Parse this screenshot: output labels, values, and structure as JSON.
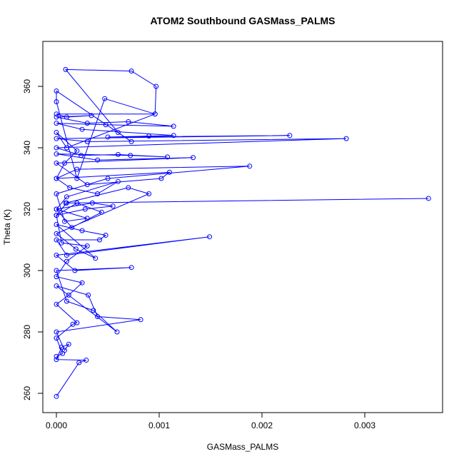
{
  "chart_data": {
    "type": "scatter",
    "mode": "lines+markers",
    "title": "ATOM2 Southbound GASMass_PALMS",
    "x_label": "GASMass_PALMS",
    "y_label": "Theta (K)",
    "color": "#0000ff",
    "xlim": [
      -0.000132,
      0.003757
    ],
    "ylim": [
      253.72,
      374.65
    ],
    "xticks": [
      {
        "value": 0,
        "label": "0.000"
      },
      {
        "value": 0.001,
        "label": "0.001"
      },
      {
        "value": 0.002,
        "label": "0.002"
      },
      {
        "value": 0.003,
        "label": "0.003"
      }
    ],
    "yticks": [
      260,
      280,
      300,
      320,
      340,
      360
    ],
    "x": [
      0,
      0.00022,
      0.00029,
      0,
      5e-05,
      0.00012,
      8e-05,
      0,
      0.00082,
      0.0004,
      0.00031,
      0,
      0.00059,
      0.00036,
      0.0001,
      0,
      0.00073,
      0.00018,
      0,
      0.00149,
      0.0001,
      0,
      0.00042,
      0.00048,
      0.00025,
      0,
      0.00038,
      0.00019,
      0,
      0.0009,
      0.0007,
      9e-05,
      0.00362,
      0.0001,
      0,
      0.00028,
      0.00055,
      0.00035,
      0,
      0.0003,
      8e-05,
      0,
      0.0005,
      0.00188,
      0.0002,
      0,
      0.0011,
      0.00102,
      0.0003,
      0,
      0.00133,
      0.0004,
      0,
      0.00072,
      0.00108,
      0.0006,
      0.00024,
      0,
      0.00282,
      0.0003,
      0,
      0.00227,
      0.0005,
      0.0009,
      0.00114,
      0.00025,
      0,
      0.00048,
      0.00114,
      0.0007,
      0.0003,
      0,
      0.00034,
      0.0001,
      0,
      0.00096,
      0.00047,
      0.0002,
      0,
      0,
      0.00073,
      0.0006,
      9e-05,
      0.00073,
      0.00097,
      0.00096,
      0.0001,
      0,
      0.0002,
      8e-05,
      0,
      0.00013,
      0.0004,
      0.0006,
      0.0001,
      0,
      0.00015,
      0.00044,
      0.0002,
      0,
      5e-05,
      0.0003,
      0.0001,
      0,
      0.00025,
      0.00012,
      0,
      0.0002,
      0.00016,
      0,
      6e-05,
      0
    ],
    "values": [
      259,
      270,
      270.8,
      271,
      275,
      276,
      274,
      280,
      284,
      285,
      292,
      295,
      280,
      287,
      290,
      300,
      301,
      300,
      305,
      311,
      305,
      310,
      310,
      311.5,
      313,
      315,
      304,
      307,
      312,
      325,
      327,
      322,
      323.5,
      322,
      318,
      320,
      321,
      322,
      320,
      317,
      316,
      325,
      330,
      334,
      333,
      330,
      332,
      330,
      328,
      335,
      336.8,
      336,
      338,
      337.5,
      337,
      337.8,
      337.5,
      340,
      343,
      342,
      343,
      344,
      343.5,
      343.8,
      344,
      346,
      348,
      347.5,
      347,
      348.5,
      348,
      350,
      350.5,
      350,
      351,
      351,
      356,
      330,
      355,
      358.5,
      342,
      345,
      365.5,
      365,
      360,
      351,
      340,
      345,
      339,
      335,
      330,
      327,
      325,
      329,
      324,
      320,
      314,
      319,
      322,
      318,
      309,
      308,
      303,
      298,
      296,
      292,
      289,
      283,
      282.5,
      278,
      273,
      272
    ]
  }
}
